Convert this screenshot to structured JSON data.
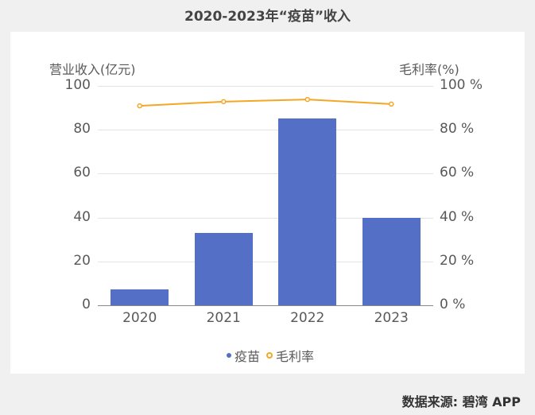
{
  "title": "2020-2023年“疫苗”收入",
  "source": "数据来源: 碧湾 APP",
  "axes": {
    "left_title": "营业收入(亿元)",
    "right_title": "毛利率(%)",
    "left_ticks": [
      "100",
      "80",
      "60",
      "40",
      "20",
      "0"
    ],
    "right_ticks": [
      "100 %",
      "80 %",
      "60 %",
      "40 %",
      "20 %",
      "0 %"
    ]
  },
  "legend": {
    "bar": "疫苗",
    "line": "毛利率"
  },
  "colors": {
    "bar": "#5470c6",
    "line": "#f5a623"
  },
  "chart_data": {
    "type": "bar",
    "title": "2020-2023年“疫苗”收入",
    "categories": [
      "2020",
      "2021",
      "2022",
      "2023"
    ],
    "series": [
      {
        "name": "疫苗",
        "type": "bar",
        "axis": "left",
        "values": [
          7.2,
          33.0,
          85.0,
          39.7
        ]
      },
      {
        "name": "毛利率",
        "type": "line",
        "axis": "right",
        "values": [
          90.9,
          92.8,
          93.8,
          91.7
        ]
      }
    ],
    "xlabel": "",
    "ylabel": "营业收入(亿元)",
    "ylabel_right": "毛利率(%)",
    "ylim": [
      0,
      100
    ],
    "ylim_right": [
      0,
      100
    ],
    "grid": true,
    "legend_position": "bottom"
  }
}
